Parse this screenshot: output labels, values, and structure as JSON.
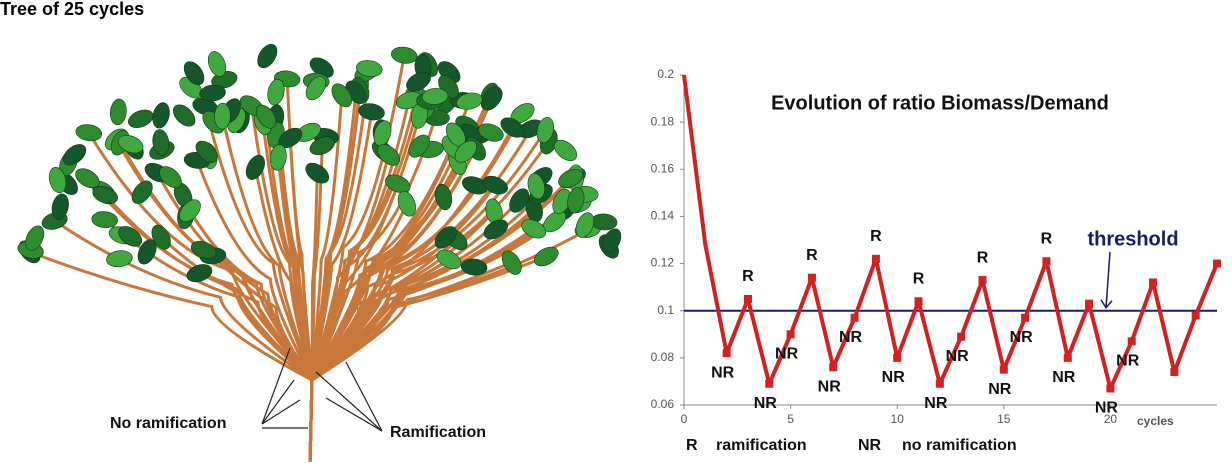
{
  "illustration": {
    "title": "Tree of 25 cycles",
    "labels": [
      "No ramification",
      "Ramification"
    ]
  },
  "chart_data": {
    "type": "line",
    "title": "Evolution of ratio Biomass/Demand",
    "x": [
      0,
      1,
      2,
      3,
      4,
      5,
      6,
      7,
      8,
      9,
      10,
      11,
      12,
      13,
      14,
      15,
      16,
      17,
      18,
      19,
      20,
      21,
      22,
      23,
      24,
      25
    ],
    "series": [
      {
        "color": "#d42020",
        "values": [
          0.2,
          0.128,
          0.082,
          0.105,
          0.069,
          0.09,
          0.114,
          0.076,
          0.097,
          0.122,
          0.08,
          0.104,
          0.069,
          0.089,
          0.113,
          0.075,
          0.097,
          0.121,
          0.08,
          0.103,
          0.067,
          0.087,
          0.112,
          0.074,
          0.098,
          0.12
        ]
      }
    ],
    "point_labels": [
      null,
      null,
      "NR",
      "R",
      "NR",
      "NR",
      "R",
      "NR",
      "NR",
      "R",
      "NR",
      "R",
      "NR",
      "NR",
      "R",
      "NR",
      "NR",
      "R",
      "NR",
      null,
      "NR",
      "NR",
      null,
      null,
      null,
      null
    ],
    "xlim": [
      0,
      25
    ],
    "xticks": [
      0,
      5,
      10,
      15,
      20
    ],
    "x_label": "cycles",
    "ylim": [
      0.06,
      0.2
    ],
    "yticks": [
      0.06,
      0.08,
      0.1,
      0.12,
      0.14,
      0.16,
      0.18,
      0.2
    ],
    "threshold": {
      "value": 0.1,
      "label": "threshold",
      "color": "#1a1a6e"
    },
    "key": [
      {
        "symbol": "R",
        "meaning": "ramification"
      },
      {
        "symbol": "NR",
        "meaning": "no ramification"
      }
    ]
  }
}
